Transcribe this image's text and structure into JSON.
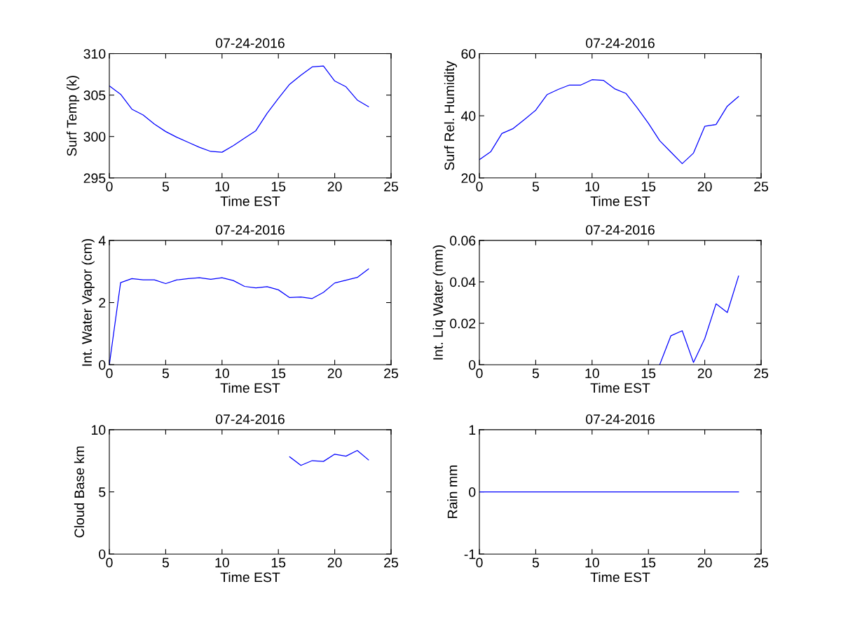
{
  "chart_data": [
    {
      "type": "line",
      "title": "07-24-2016",
      "xlabel": "Time EST",
      "ylabel": "Surf Temp (k)",
      "color": "#0000ff",
      "xlim": [
        0,
        25
      ],
      "xticks": [
        0,
        5,
        10,
        15,
        20,
        25
      ],
      "ylim": [
        295,
        310
      ],
      "yticks": [
        295,
        300,
        305,
        310
      ],
      "x": [
        0,
        1,
        2,
        3,
        4,
        5,
        6,
        7,
        8,
        9,
        10,
        11,
        12,
        13,
        14,
        15,
        16,
        17,
        18,
        19,
        20,
        21,
        22,
        23
      ],
      "values": [
        306.1,
        305.1,
        303.3,
        302.6,
        301.5,
        300.6,
        299.9,
        299.3,
        298.7,
        298.2,
        298.1,
        298.9,
        299.8,
        300.7,
        302.8,
        304.6,
        306.3,
        307.4,
        308.4,
        308.5,
        306.7,
        306.0,
        304.4,
        303.6
      ]
    },
    {
      "type": "line",
      "title": "07-24-2016",
      "xlabel": "Time EST",
      "ylabel": "Surf Rel. Humidity",
      "color": "#0000ff",
      "xlim": [
        0,
        25
      ],
      "xticks": [
        0,
        5,
        10,
        15,
        20,
        25
      ],
      "ylim": [
        20,
        60
      ],
      "yticks": [
        20,
        40,
        60
      ],
      "x": [
        0,
        1,
        2,
        3,
        4,
        5,
        6,
        7,
        8,
        9,
        10,
        11,
        12,
        13,
        14,
        15,
        16,
        17,
        18,
        19,
        20,
        21,
        22,
        23
      ],
      "values": [
        25.9,
        28.4,
        34.3,
        35.9,
        38.8,
        41.8,
        46.8,
        48.5,
        49.9,
        49.9,
        51.6,
        51.4,
        48.7,
        47.2,
        42.6,
        37.6,
        32.0,
        28.3,
        24.6,
        28.0,
        36.6,
        37.2,
        43.1,
        46.2
      ]
    },
    {
      "type": "line",
      "title": "07-24-2016",
      "xlabel": "Time EST",
      "ylabel": "Int. Water Vapor (cm)",
      "color": "#0000ff",
      "xlim": [
        0,
        25
      ],
      "xticks": [
        0,
        5,
        10,
        15,
        20,
        25
      ],
      "ylim": [
        0,
        4
      ],
      "yticks": [
        0,
        2,
        4
      ],
      "x": [
        0,
        1,
        2,
        3,
        4,
        5,
        6,
        7,
        8,
        9,
        10,
        11,
        12,
        13,
        14,
        15,
        16,
        17,
        18,
        19,
        20,
        21,
        22,
        23
      ],
      "values": [
        0.0,
        2.64,
        2.77,
        2.73,
        2.73,
        2.61,
        2.73,
        2.77,
        2.8,
        2.75,
        2.8,
        2.71,
        2.52,
        2.47,
        2.51,
        2.41,
        2.16,
        2.18,
        2.13,
        2.33,
        2.63,
        2.72,
        2.81,
        3.08
      ]
    },
    {
      "type": "line",
      "title": "07-24-2016",
      "xlabel": "Time EST",
      "ylabel": "Int. Liq Water (mm)",
      "color": "#0000ff",
      "xlim": [
        0,
        25
      ],
      "xticks": [
        0,
        5,
        10,
        15,
        20,
        25
      ],
      "ylim": [
        0,
        0.06
      ],
      "yticks": [
        0,
        0.02,
        0.04,
        0.06
      ],
      "x": [
        16,
        17,
        18,
        19,
        20,
        21,
        22,
        23
      ],
      "values": [
        0.0,
        0.014,
        0.0164,
        0.0011,
        0.0126,
        0.0294,
        0.0252,
        0.0428
      ]
    },
    {
      "type": "line",
      "title": "07-24-2016",
      "xlabel": "Time EST",
      "ylabel": "Cloud Base km",
      "color": "#0000ff",
      "xlim": [
        0,
        25
      ],
      "xticks": [
        0,
        5,
        10,
        15,
        20,
        25
      ],
      "ylim": [
        0,
        10
      ],
      "yticks": [
        0,
        5,
        10
      ],
      "x": [
        16,
        17,
        18,
        19,
        20,
        21,
        22,
        23
      ],
      "values": [
        7.82,
        7.13,
        7.51,
        7.45,
        8.03,
        7.87,
        8.33,
        7.57
      ]
    },
    {
      "type": "line",
      "title": "07-24-2016",
      "xlabel": "Time EST",
      "ylabel": "Rain mm",
      "color": "#0000ff",
      "xlim": [
        0,
        25
      ],
      "xticks": [
        0,
        5,
        10,
        15,
        20,
        25
      ],
      "ylim": [
        -1,
        1
      ],
      "yticks": [
        -1,
        0,
        1
      ],
      "x": [
        0,
        1,
        2,
        3,
        4,
        5,
        6,
        7,
        8,
        9,
        10,
        11,
        12,
        13,
        14,
        15,
        16,
        17,
        18,
        19,
        20,
        21,
        22,
        23
      ],
      "values": [
        0,
        0,
        0,
        0,
        0,
        0,
        0,
        0,
        0,
        0,
        0,
        0,
        0,
        0,
        0,
        0,
        0,
        0,
        0,
        0,
        0,
        0,
        0,
        0
      ]
    }
  ]
}
